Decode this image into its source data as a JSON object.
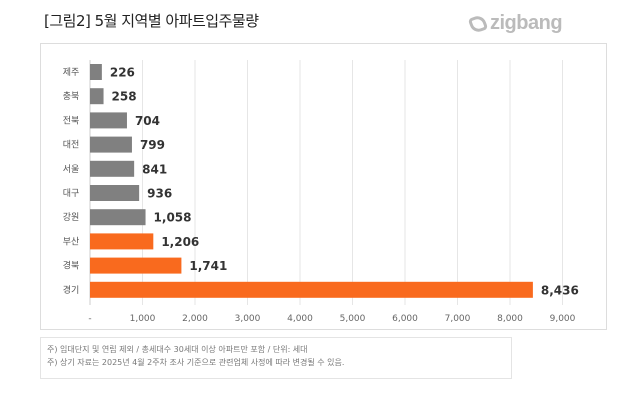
{
  "title": "[그림2] 5월 지역별 아파트입주물량",
  "logo": "zigbang",
  "chart_data": {
    "type": "bar",
    "orientation": "horizontal",
    "categories": [
      "제주",
      "충북",
      "전북",
      "대전",
      "서울",
      "대구",
      "강원",
      "부산",
      "경북",
      "경기"
    ],
    "values": [
      226,
      258,
      704,
      799,
      841,
      936,
      1058,
      1206,
      1741,
      8436
    ],
    "value_labels": [
      "226",
      "258",
      "704",
      "799",
      "841",
      "936",
      "1,058",
      "1,206",
      "1,741",
      "8,436"
    ],
    "highlight": [
      false,
      false,
      false,
      false,
      false,
      false,
      false,
      true,
      true,
      true
    ],
    "colors": {
      "default": "#808080",
      "highlight": "#f96a1e"
    },
    "xlim": [
      0,
      9000
    ],
    "xticks": [
      "-",
      "1,000",
      "2,000",
      "3,000",
      "4,000",
      "5,000",
      "6,000",
      "7,000",
      "8,000",
      "9,000"
    ],
    "grid": true
  },
  "notes": [
    "주) 임대단지 및 연립 제외 / 총세대수 30세대 이상 아파트만 포함 / 단위: 세대",
    "주) 상기 자료는 2025년 4월 2주차 조사 기준으로 관련업체 사정에 따라 변경될 수 있음."
  ]
}
